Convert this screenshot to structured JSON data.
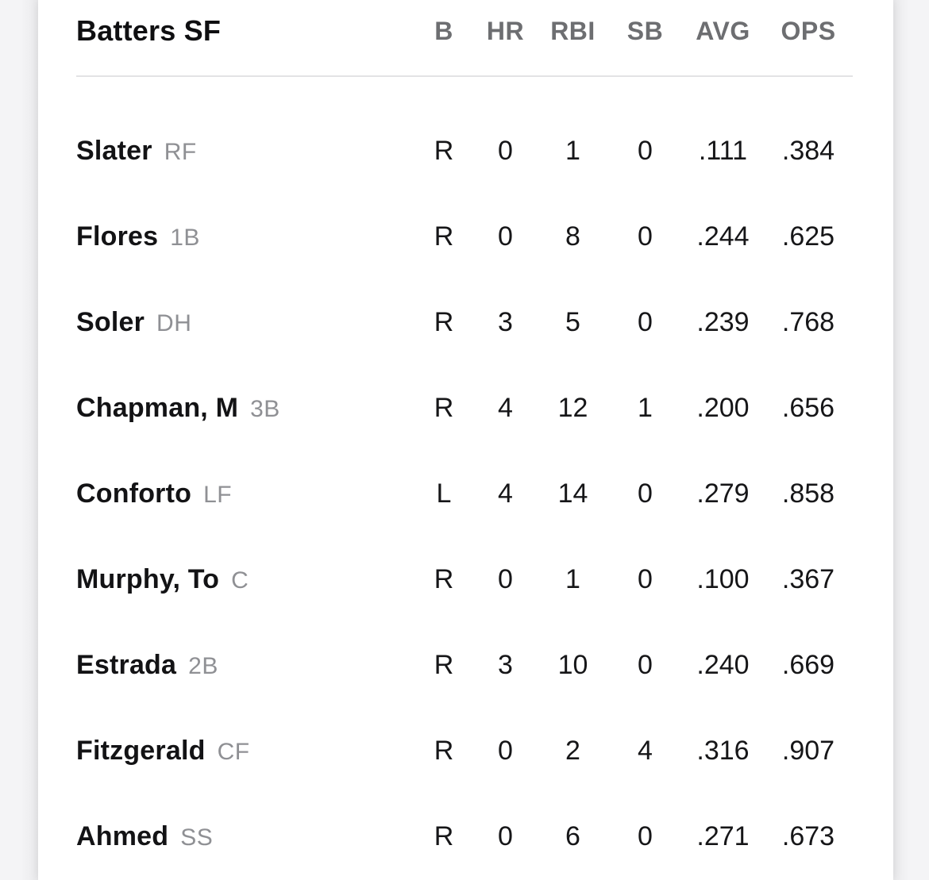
{
  "table": {
    "title": "Batters SF",
    "columns": [
      "B",
      "HR",
      "RBI",
      "SB",
      "AVG",
      "OPS"
    ],
    "rows": [
      {
        "name": "Slater",
        "pos": "RF",
        "b": "R",
        "hr": "0",
        "rbi": "1",
        "sb": "0",
        "avg": ".111",
        "ops": ".384"
      },
      {
        "name": "Flores",
        "pos": "1B",
        "b": "R",
        "hr": "0",
        "rbi": "8",
        "sb": "0",
        "avg": ".244",
        "ops": ".625"
      },
      {
        "name": "Soler",
        "pos": "DH",
        "b": "R",
        "hr": "3",
        "rbi": "5",
        "sb": "0",
        "avg": ".239",
        "ops": ".768"
      },
      {
        "name": "Chapman, M",
        "pos": "3B",
        "b": "R",
        "hr": "4",
        "rbi": "12",
        "sb": "1",
        "avg": ".200",
        "ops": ".656"
      },
      {
        "name": "Conforto",
        "pos": "LF",
        "b": "L",
        "hr": "4",
        "rbi": "14",
        "sb": "0",
        "avg": ".279",
        "ops": ".858"
      },
      {
        "name": "Murphy, To",
        "pos": "C",
        "b": "R",
        "hr": "0",
        "rbi": "1",
        "sb": "0",
        "avg": ".100",
        "ops": ".367"
      },
      {
        "name": "Estrada",
        "pos": "2B",
        "b": "R",
        "hr": "3",
        "rbi": "10",
        "sb": "0",
        "avg": ".240",
        "ops": ".669"
      },
      {
        "name": "Fitzgerald",
        "pos": "CF",
        "b": "R",
        "hr": "0",
        "rbi": "2",
        "sb": "4",
        "avg": ".316",
        "ops": ".907"
      },
      {
        "name": "Ahmed",
        "pos": "SS",
        "b": "R",
        "hr": "0",
        "rbi": "6",
        "sb": "0",
        "avg": ".271",
        "ops": ".673"
      }
    ]
  },
  "colors": {
    "text_primary": "#131315",
    "text_column_header": "#6d6e71",
    "text_position": "#8f9094",
    "divider": "#e3e3e5",
    "background": "#f3f3f5",
    "panel": "#ffffff"
  }
}
